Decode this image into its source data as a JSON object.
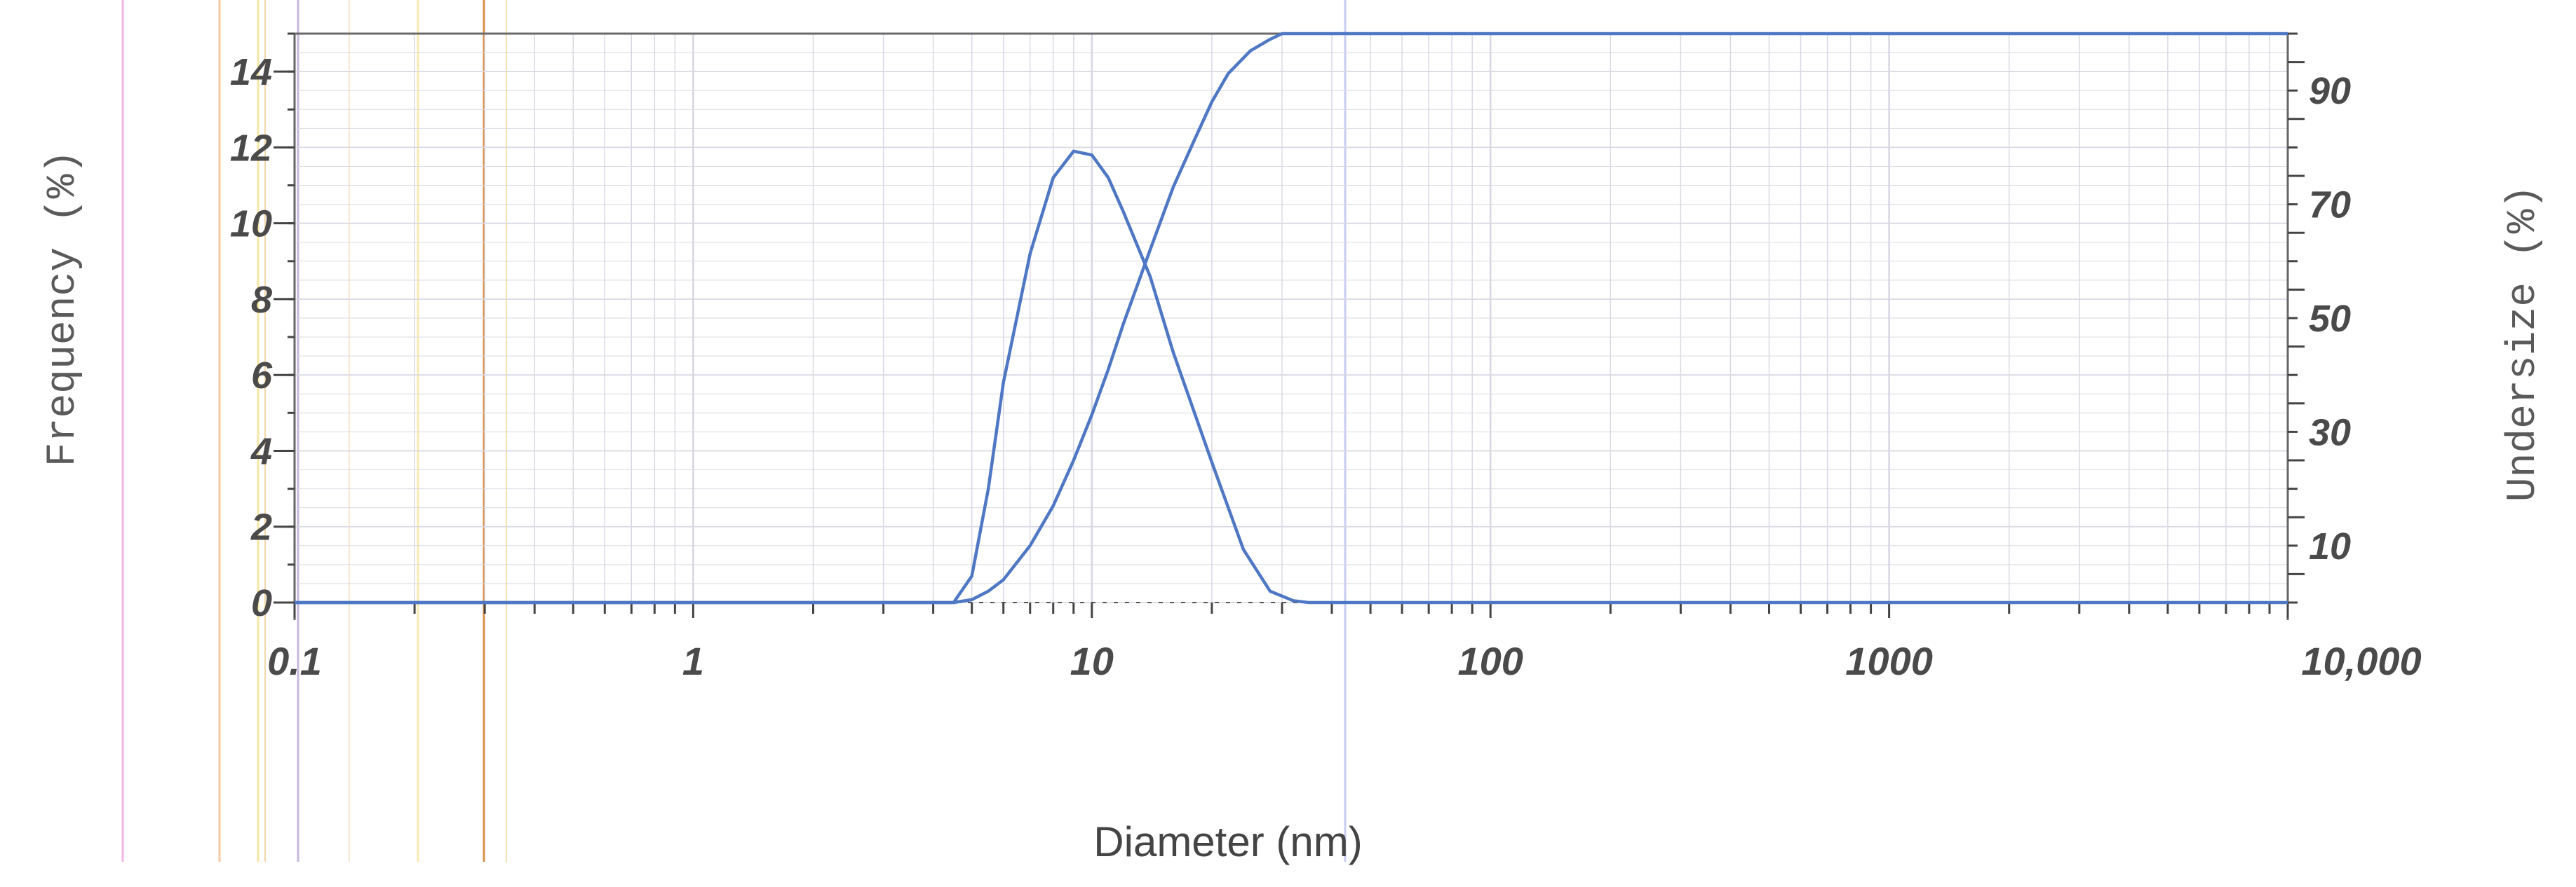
{
  "chart_data": {
    "type": "line",
    "title": "",
    "xlabel": "Diameter (nm)",
    "ylabel_left": "Frequency (%)",
    "ylabel_right": "Undersize (%)",
    "x_scale": "log",
    "xlim": [
      0.1,
      10000
    ],
    "ylim_left": [
      0,
      15
    ],
    "ylim_right": [
      0,
      100
    ],
    "grid": true,
    "x_ticks": [
      {
        "value": 0.1,
        "label": "0.1"
      },
      {
        "value": 1,
        "label": "1"
      },
      {
        "value": 10,
        "label": "10"
      },
      {
        "value": 100,
        "label": "100"
      },
      {
        "value": 1000,
        "label": "1000"
      },
      {
        "value": 10000,
        "label": "10,000"
      }
    ],
    "y_left_ticks": [
      {
        "value": 0,
        "label": "0"
      },
      {
        "value": 2,
        "label": "2"
      },
      {
        "value": 4,
        "label": "4"
      },
      {
        "value": 6,
        "label": "6"
      },
      {
        "value": 8,
        "label": "8"
      },
      {
        "value": 10,
        "label": "10"
      },
      {
        "value": 12,
        "label": "12"
      },
      {
        "value": 14,
        "label": "14"
      }
    ],
    "y_right_ticks": [
      {
        "value": 10,
        "label": "10"
      },
      {
        "value": 30,
        "label": "30"
      },
      {
        "value": 50,
        "label": "50"
      },
      {
        "value": 70,
        "label": "70"
      },
      {
        "value": 90,
        "label": "90"
      }
    ],
    "series": [
      {
        "axis": "left",
        "color": "#4f78c4",
        "points": [
          [
            0.1,
            0
          ],
          [
            0.3,
            0
          ],
          [
            1,
            0
          ],
          [
            3,
            0
          ],
          [
            4.5,
            0
          ],
          [
            5,
            0.7
          ],
          [
            5.5,
            3
          ],
          [
            6,
            5.8
          ],
          [
            7,
            9.2
          ],
          [
            8,
            11.2
          ],
          [
            9,
            11.9
          ],
          [
            10,
            11.8
          ],
          [
            11,
            11.2
          ],
          [
            12,
            10.3
          ],
          [
            14,
            8.6
          ],
          [
            16,
            6.6
          ],
          [
            20,
            3.7
          ],
          [
            24,
            1.4
          ],
          [
            28,
            0.3
          ],
          [
            32,
            0.05
          ],
          [
            35,
            0
          ],
          [
            50,
            0
          ],
          [
            100,
            0
          ],
          [
            1000,
            0
          ],
          [
            10000,
            0
          ]
        ]
      },
      {
        "axis": "right",
        "color": "#4f78c4",
        "points": [
          [
            0.1,
            0
          ],
          [
            1,
            0
          ],
          [
            4.5,
            0
          ],
          [
            5,
            0.5
          ],
          [
            5.5,
            2
          ],
          [
            6,
            4
          ],
          [
            7,
            10
          ],
          [
            8,
            17
          ],
          [
            9,
            25
          ],
          [
            10,
            33
          ],
          [
            11,
            41
          ],
          [
            12,
            49
          ],
          [
            14,
            62
          ],
          [
            16,
            73
          ],
          [
            18,
            81
          ],
          [
            20,
            88
          ],
          [
            22,
            93
          ],
          [
            25,
            97
          ],
          [
            28,
            99
          ],
          [
            30,
            100
          ],
          [
            50,
            100
          ],
          [
            100,
            100
          ],
          [
            1000,
            100
          ],
          [
            10000,
            100
          ]
        ]
      }
    ]
  }
}
